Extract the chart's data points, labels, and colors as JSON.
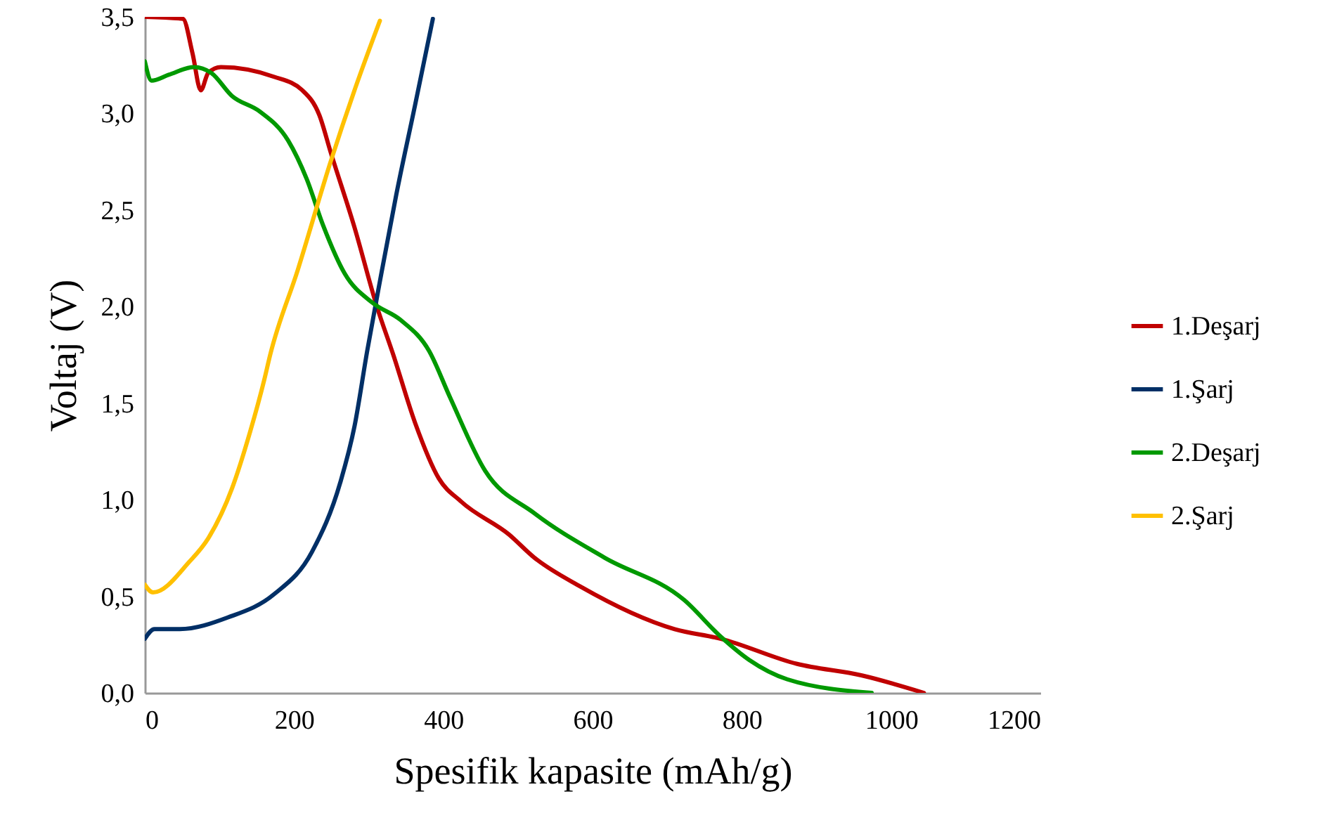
{
  "chart_data": {
    "type": "line",
    "xlabel": "Spesifik kapasite (mAh/g)",
    "ylabel": "Voltaj (V)",
    "xlim": [
      0,
      1200
    ],
    "xticks": [
      0,
      200,
      400,
      600,
      800,
      1000,
      1200
    ],
    "ylim": [
      0,
      3.5
    ],
    "yticks": [
      {
        "value": 0,
        "label": "0,0"
      },
      {
        "value": 0.5,
        "label": "0,5"
      },
      {
        "value": 1,
        "label": "1,0"
      },
      {
        "value": 1.5,
        "label": "1,5"
      },
      {
        "value": 2,
        "label": "2,0"
      },
      {
        "value": 2.5,
        "label": "2,5"
      },
      {
        "value": 3,
        "label": "3,0"
      },
      {
        "value": 3.5,
        "label": "3,5"
      }
    ],
    "grid": false,
    "legend": "right",
    "marker": "none",
    "line_style": "solid",
    "series": [
      {
        "name": "1.Deşarj",
        "color": "#c00000",
        "x": [
          0,
          51,
          64,
          75,
          85,
          102,
          173,
          211,
          234,
          249,
          281,
          311,
          333,
          362,
          394,
          424,
          488,
          522,
          584,
          710,
          772,
          874,
          961,
          1044
        ],
        "values": [
          3.5,
          3.49,
          3.31,
          3.12,
          3.21,
          3.24,
          3.19,
          3.12,
          2.99,
          2.8,
          2.41,
          2.0,
          1.75,
          1.4,
          1.11,
          0.99,
          0.82,
          0.7,
          0.55,
          0.33,
          0.28,
          0.15,
          0.09,
          0.0
        ]
      },
      {
        "name": "1.Şarj",
        "color": "#002f66",
        "x": [
          0,
          13,
          47,
          111,
          173,
          224,
          262,
          281,
          298,
          315,
          337,
          362,
          386
        ],
        "values": [
          0.28,
          0.33,
          0.33,
          0.39,
          0.51,
          0.73,
          1.09,
          1.38,
          1.77,
          2.13,
          2.58,
          3.04,
          3.49
        ]
      },
      {
        "name": "2.Deşarj",
        "color": "#009900",
        "x": [
          0,
          9,
          32,
          66,
          89,
          117,
          154,
          192,
          217,
          239,
          268,
          305,
          343,
          381,
          409,
          456,
          522,
          616,
          723,
          772,
          810,
          861,
          974
        ],
        "values": [
          3.27,
          3.17,
          3.2,
          3.24,
          3.21,
          3.09,
          3.01,
          2.86,
          2.66,
          2.42,
          2.17,
          2.02,
          1.93,
          1.77,
          1.53,
          1.15,
          0.93,
          0.7,
          0.48,
          0.29,
          0.17,
          0.07,
          0.0
        ]
      },
      {
        "name": "2.Şarj",
        "color": "#ffc000",
        "x": [
          0,
          11,
          60,
          85,
          117,
          141,
          160,
          168,
          205,
          249,
          281,
          315
        ],
        "values": [
          0.56,
          0.52,
          0.68,
          0.8,
          1.06,
          1.35,
          1.62,
          1.75,
          2.19,
          2.75,
          3.12,
          3.48
        ]
      }
    ]
  }
}
